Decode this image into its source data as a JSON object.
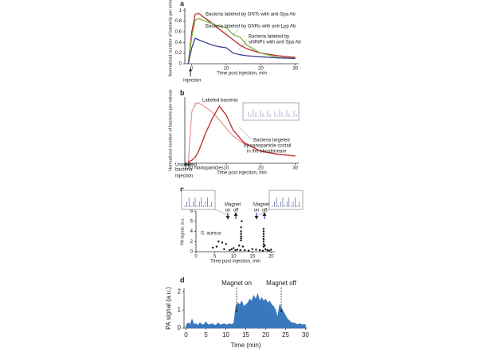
{
  "chart_data": [
    {
      "panel": "a",
      "type": "line",
      "xlabel": "Time post injection, min",
      "ylabel": "Normalized number of bacteria per minute",
      "xlim": [
        -2,
        31
      ],
      "ylim": [
        0,
        1.05
      ],
      "xticks": [
        0,
        10,
        20,
        30
      ],
      "yticks": [
        0,
        0.2,
        0.4,
        0.6,
        0.8,
        1
      ],
      "x": [
        -1,
        0,
        1,
        2,
        4,
        6,
        8,
        10,
        12,
        14,
        16,
        20,
        25,
        30
      ],
      "series": [
        {
          "color": "#c0282d",
          "values": [
            0,
            0.6,
            0.93,
            0.95,
            0.85,
            0.75,
            0.65,
            0.55,
            0.45,
            0.35,
            0.28,
            0.2,
            0.15,
            0.12
          ]
        },
        {
          "color": "#7ab648",
          "values": [
            0,
            0.5,
            0.82,
            0.85,
            0.8,
            0.75,
            0.7,
            0.68,
            0.55,
            0.5,
            0.35,
            0.2,
            0.12,
            0.1
          ]
        },
        {
          "color": "#3a3f8f",
          "values": [
            0,
            0.3,
            0.48,
            0.45,
            0.4,
            0.35,
            0.32,
            0.3,
            0.2,
            0.17,
            0.15,
            0.13,
            0.11,
            0.1
          ]
        }
      ],
      "annotations": [
        "Bacteria labeled by GNTs with anti-Spa Ab",
        "Bacteria labeled by GNRs with anti-Lpp Ab",
        "Bacteria labeled by",
        "siMNPs with anti-Spa Ab",
        "Injection"
      ]
    },
    {
      "panel": "b",
      "type": "line",
      "xlabel": "Time post injection, min",
      "ylabel": "Normalized number of bacteria per minute",
      "xlim": [
        -2,
        31
      ],
      "ylim": [
        0,
        1.1
      ],
      "xticks": [
        0,
        10,
        20,
        30
      ],
      "x": [
        -1,
        0,
        1,
        2,
        3,
        4,
        6,
        8,
        10,
        12,
        15,
        20,
        25,
        30
      ],
      "series": [
        {
          "color": "#e89a9a",
          "values": [
            0,
            0.85,
            1,
            1,
            0.97,
            0.93,
            0.85,
            0.72,
            0.58,
            0.45,
            0.33,
            0.2,
            0.15,
            0.12
          ]
        },
        {
          "color": "#c0282d",
          "values": [
            0.02,
            0.05,
            0.1,
            0.2,
            0.35,
            0.5,
            0.75,
            0.95,
            0.8,
            0.55,
            0.35,
            0.2,
            0.15,
            0.12
          ]
        }
      ],
      "annotations": [
        "Labeled bacteria",
        "Bacteria targeted",
        "by nanoparticle coctail",
        "in the bloodstream",
        "Unlabeled",
        "bacteria",
        "Nanoparticles",
        "Injection"
      ]
    },
    {
      "panel": "c",
      "type": "scatter",
      "xlabel": "Time post injection, min",
      "ylabel": "PA signal, a.u.",
      "xlim": [
        0,
        21
      ],
      "ylim": [
        0,
        8
      ],
      "xticks": [
        0,
        5,
        10,
        15,
        20
      ],
      "yticks": [
        0,
        2,
        4,
        6,
        8
      ],
      "x": [
        4.5,
        5.5,
        6,
        7,
        7.5,
        8,
        9,
        9.5,
        10,
        10.5,
        11,
        11.5,
        11.8,
        12,
        12,
        12,
        12,
        12,
        12,
        12.2,
        12.5,
        13,
        14,
        15,
        16,
        17,
        17.8,
        18,
        18,
        18,
        18,
        18,
        18,
        18,
        18,
        18.3,
        18.5,
        19,
        19.5,
        20
      ],
      "series": [
        {
          "color": "#111111",
          "values": [
            0.8,
            1.0,
            2.0,
            1.8,
            0.5,
            1.5,
            0.3,
            0.5,
            0.7,
            0.3,
            0.4,
            1.2,
            0.3,
            2.2,
            2.6,
            3.0,
            3.5,
            4.0,
            4.8,
            6.0,
            1.0,
            0.3,
            0.2,
            0.5,
            0.4,
            0.3,
            0.2,
            1.0,
            1.5,
            2.0,
            2.5,
            3.0,
            3.5,
            4.0,
            4.5,
            1.2,
            0.5,
            0.3,
            0.2,
            0.4
          ]
        }
      ],
      "annotations": [
        "S. aureus",
        "Magnet",
        "on",
        "off",
        "Magnet",
        "on",
        "off"
      ]
    },
    {
      "panel": "d",
      "type": "area",
      "xlabel": "Time (min)",
      "ylabel": "PA signal (a.u.)",
      "xlim": [
        -0.5,
        30.5
      ],
      "ylim": [
        0,
        2.2
      ],
      "xticks": [
        0,
        5,
        10,
        15,
        20,
        25,
        30
      ],
      "yticks": [
        0,
        1,
        2
      ],
      "x": [
        0,
        0.5,
        1,
        1.5,
        2,
        2.5,
        3,
        3.5,
        4,
        4.5,
        5,
        5.5,
        6,
        6.5,
        7,
        7.5,
        8,
        8.5,
        9,
        9.5,
        10,
        10.5,
        11,
        11.5,
        12,
        12.5,
        13,
        13.5,
        14,
        14.5,
        15,
        15.5,
        16,
        16.5,
        17,
        17.5,
        18,
        18.5,
        19,
        19.5,
        20,
        20.5,
        21,
        21.5,
        22,
        22.5,
        23,
        23.5,
        24,
        24.5,
        25,
        25.5,
        26,
        26.5,
        27,
        27.5,
        28,
        28.5,
        29,
        29.5,
        30
      ],
      "series": [
        {
          "color": "#3a78bd",
          "values": [
            0.15,
            0.3,
            0.2,
            0.5,
            0.2,
            0.25,
            0.15,
            0.3,
            0.2,
            0.2,
            0.35,
            0.2,
            0.2,
            0.25,
            0.2,
            0.15,
            0.3,
            0.2,
            0.2,
            0.25,
            0.2,
            0.2,
            0.25,
            0.2,
            0.3,
            1.2,
            1.4,
            1.3,
            1.5,
            1.2,
            1.3,
            1.4,
            1.6,
            1.5,
            1.8,
            1.6,
            1.9,
            1.5,
            1.7,
            1.5,
            1.6,
            1.4,
            1.5,
            1.3,
            1.2,
            1.0,
            0.6,
            1.3,
            1.1,
            0.9,
            0.7,
            0.5,
            0.4,
            0.3,
            0.3,
            0.25,
            0.2,
            0.25,
            0.2,
            0.2,
            0.2
          ]
        }
      ],
      "annotations": [
        "Magnet on",
        "Magnet off"
      ]
    }
  ]
}
